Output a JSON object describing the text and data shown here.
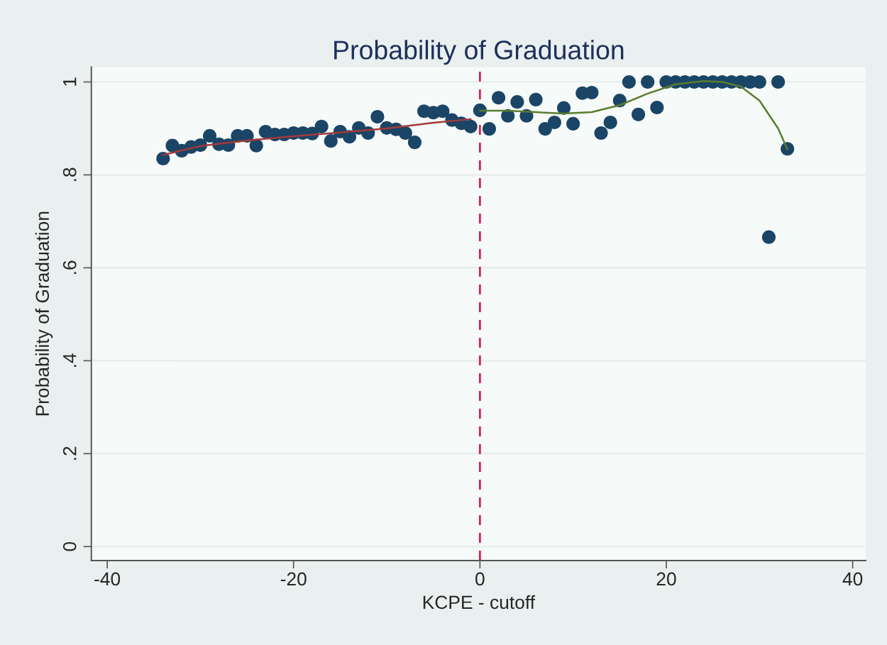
{
  "chart_data": {
    "type": "scatter",
    "title": "Probability of Graduation",
    "xlabel": "KCPE - cutoff",
    "ylabel": "Probability of Graduation",
    "xlim": [
      -41.7,
      41.4
    ],
    "ylim": [
      -0.03,
      1.032
    ],
    "xticks": [
      {
        "value": -40,
        "label": "-40"
      },
      {
        "value": -20,
        "label": "-20"
      },
      0,
      20,
      40
    ],
    "yticks": [
      {
        "value": 0,
        "label": "0"
      },
      {
        "value": 0.2,
        "label": ".2"
      },
      {
        "value": 0.4,
        "label": ".4"
      },
      {
        "value": 0.6,
        "label": ".6"
      },
      {
        "value": 0.8,
        "label": ".8"
      },
      {
        "value": 1,
        "label": "1"
      }
    ],
    "grid": "y",
    "series": [
      {
        "marker": "circle",
        "color": "#1b4566",
        "x": [
          -34,
          -33,
          -32,
          -31,
          -30,
          -29,
          -28,
          -27,
          -26,
          -25,
          -24,
          -23,
          -22,
          -21,
          -20,
          -19,
          -18,
          -17,
          -16,
          -15,
          -14,
          -13,
          -12,
          -11,
          -10,
          -9,
          -8,
          -7,
          -6,
          -5,
          -4,
          -3,
          -2,
          -1,
          0,
          1,
          2,
          3,
          4,
          5,
          6,
          7,
          8,
          9,
          10,
          11,
          12,
          13,
          14,
          15,
          16,
          17,
          18,
          19,
          20,
          21,
          22,
          23,
          24,
          25,
          26,
          27,
          28,
          29,
          30,
          31,
          32,
          33
        ],
        "values": [
          0.835,
          0.863,
          0.852,
          0.86,
          0.864,
          0.884,
          0.866,
          0.864,
          0.884,
          0.884,
          0.863,
          0.893,
          0.887,
          0.887,
          0.89,
          0.89,
          0.889,
          0.904,
          0.873,
          0.893,
          0.882,
          0.901,
          0.89,
          0.925,
          0.901,
          0.898,
          0.89,
          0.87,
          0.937,
          0.934,
          0.937,
          0.918,
          0.911,
          0.904,
          0.939,
          0.899,
          0.966,
          0.927,
          0.957,
          0.927,
          0.962,
          0.899,
          0.913,
          0.944,
          0.91,
          0.976,
          0.977,
          0.89,
          0.913,
          0.96,
          1,
          0.93,
          1,
          0.945,
          1,
          1,
          1,
          1,
          1,
          1,
          1,
          1,
          1,
          1,
          1,
          0.666,
          1,
          0.856
        ]
      },
      {
        "type": "line",
        "color": "#a33a3a",
        "line_style": "solid",
        "x": [
          -34,
          -30,
          -25,
          -20,
          -15,
          -10,
          -5,
          -1
        ],
        "values": [
          0.843,
          0.862,
          0.874,
          0.883,
          0.891,
          0.9,
          0.912,
          0.92
        ]
      },
      {
        "type": "line",
        "color": "#5b7d2c",
        "line_style": "solid",
        "x": [
          0,
          3,
          6,
          9,
          12,
          15,
          18,
          21,
          24,
          26,
          28,
          30,
          32,
          33
        ],
        "values": [
          0.938,
          0.938,
          0.935,
          0.932,
          0.935,
          0.95,
          0.975,
          0.995,
          1.002,
          1.0,
          0.99,
          0.96,
          0.9,
          0.855
        ]
      }
    ],
    "ref_lines": [
      {
        "axis": "x",
        "value": 0,
        "color": "#d91f4c",
        "line_style": "dashed"
      }
    ]
  }
}
